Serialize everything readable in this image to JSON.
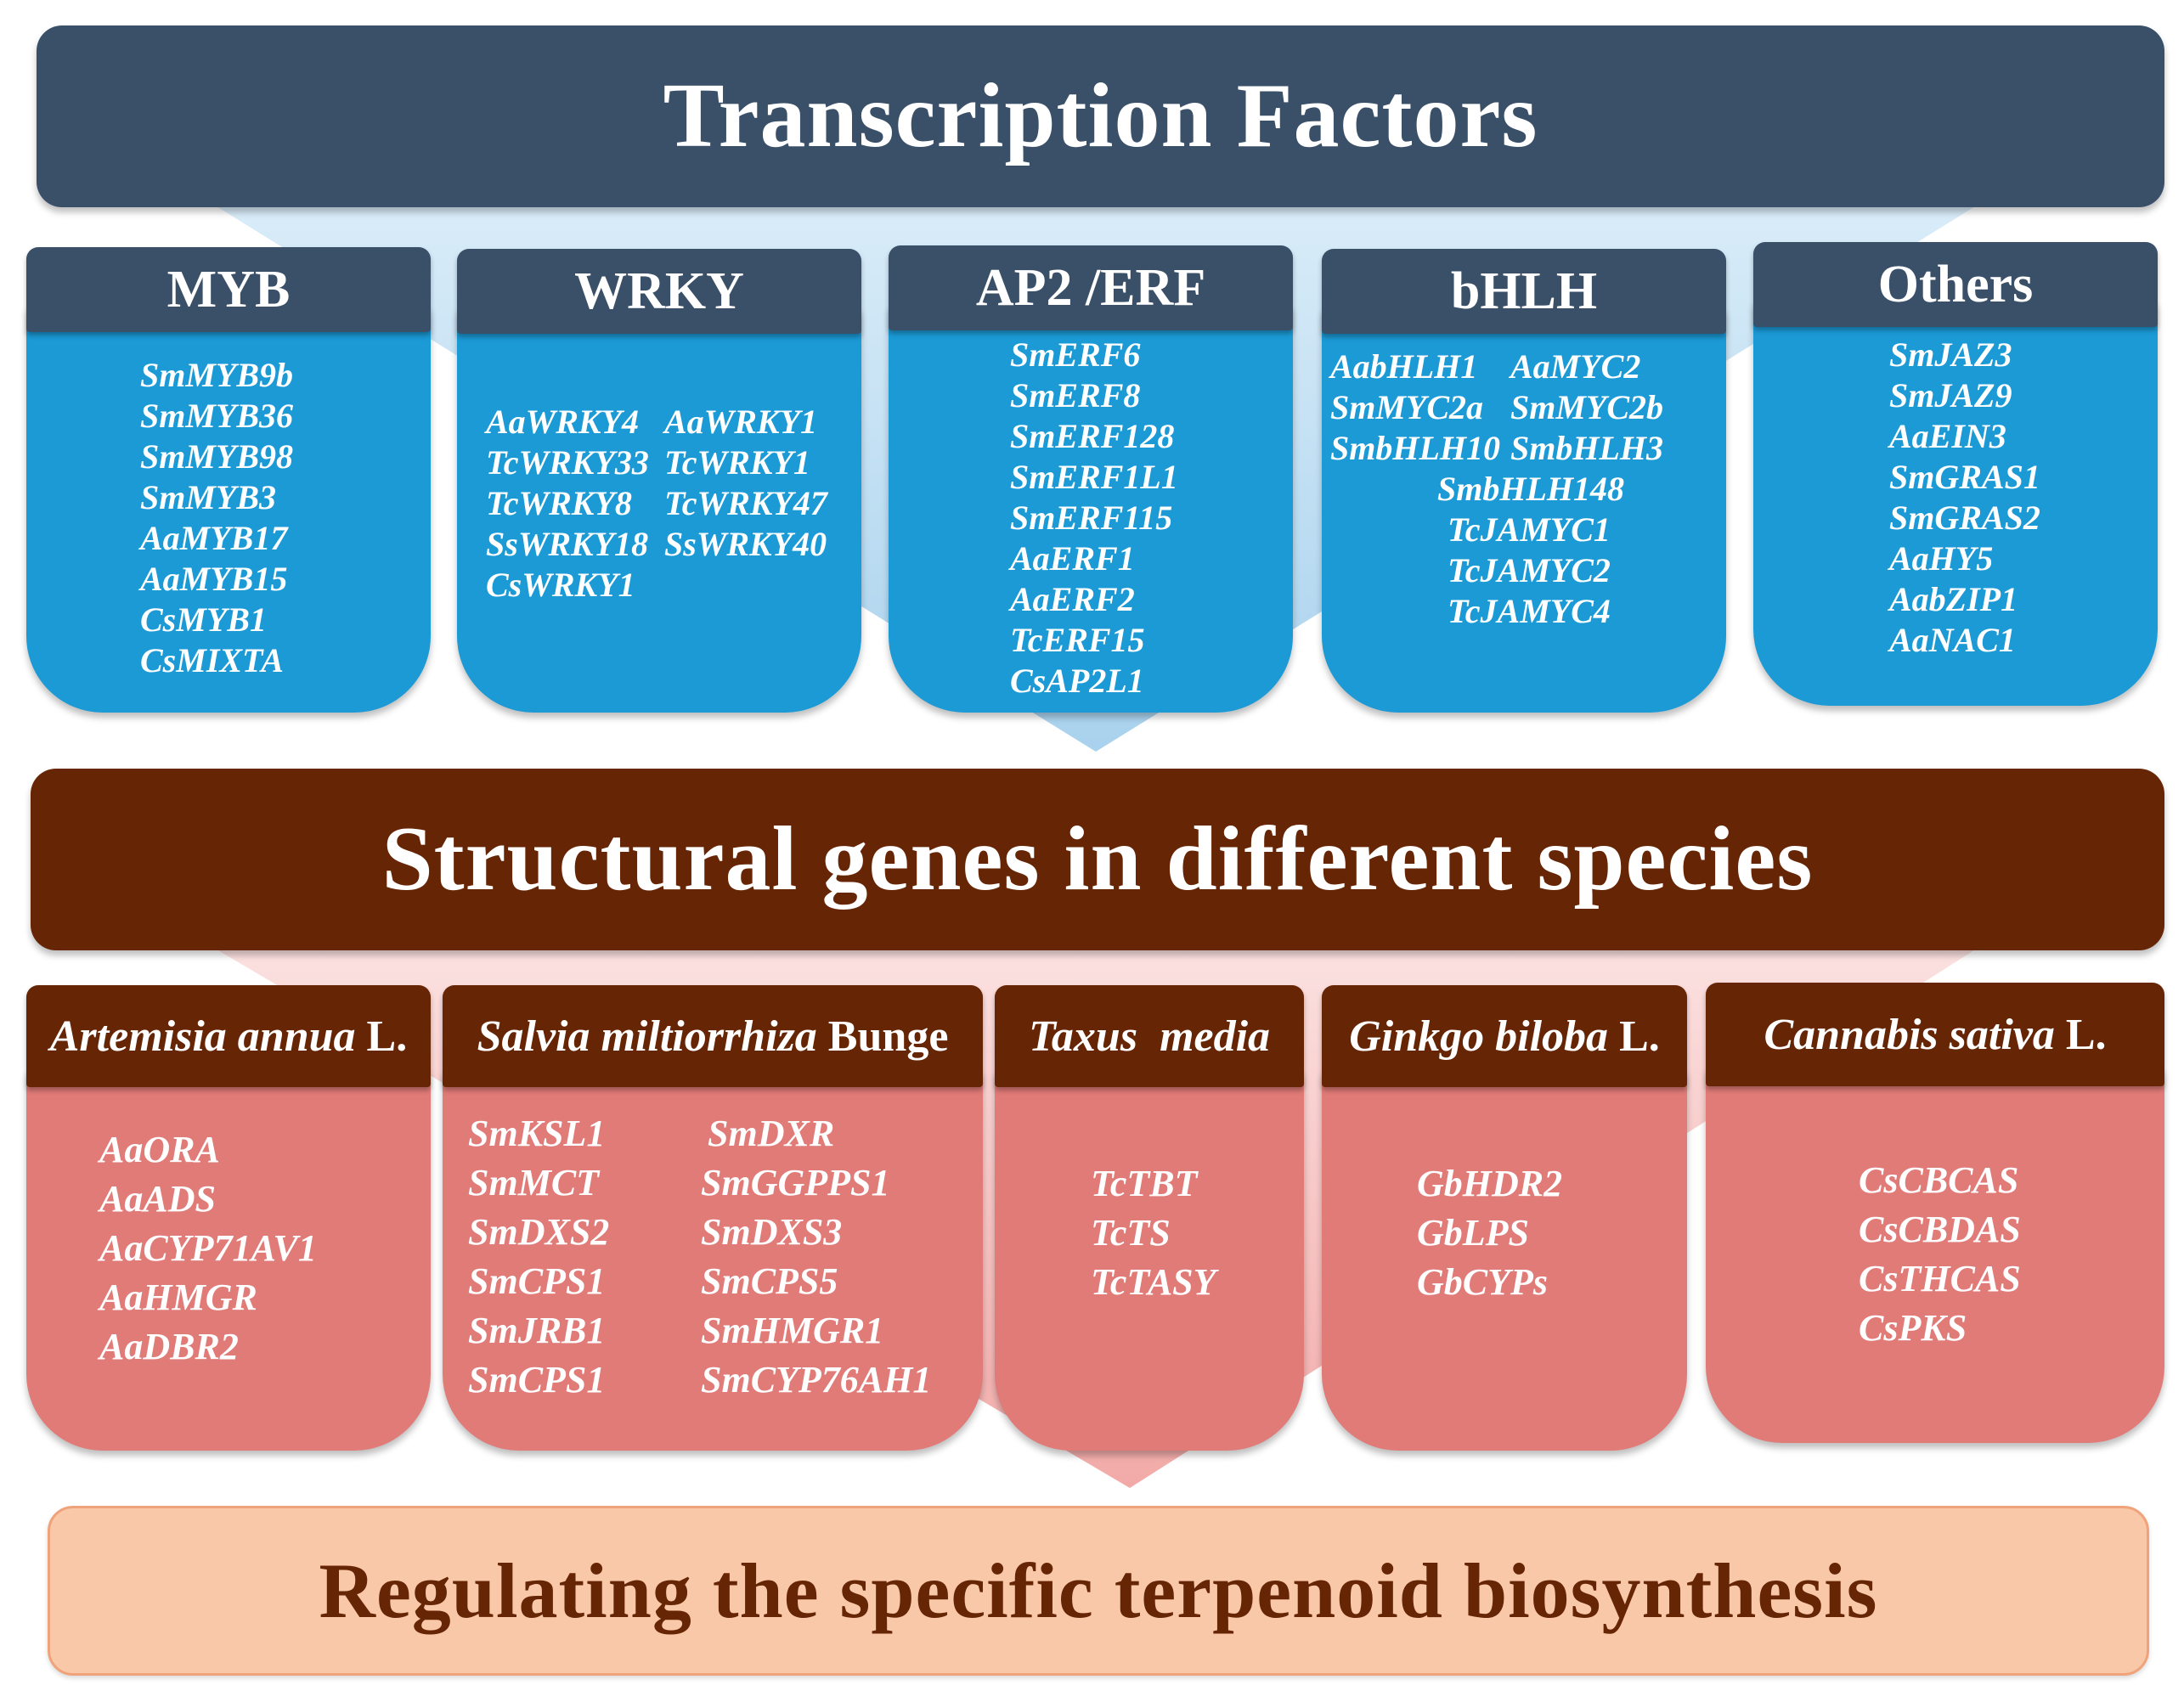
{
  "colors": {
    "tf_header": "#3a5068",
    "tf_body": "#1b9ad6",
    "sg_header": "#662505",
    "sg_body": "#e07b78",
    "reg_fill": "#f9c8a8"
  },
  "tf_band": {
    "title": "Transcription Factors"
  },
  "tf_cards": [
    {
      "title": "MYB",
      "genes": [
        "SmMYB9b",
        "SmMYB36",
        "SmMYB98",
        "SmMYB3",
        "AaMYB17",
        "AaMYB15",
        "CsMYB1",
        "CsMIXTA"
      ]
    },
    {
      "title": "WRKY",
      "genes_left": [
        "AaWRKY4",
        "TcWRKY33",
        "TcWRKY8",
        "SsWRKY18",
        "CsWRKY1"
      ],
      "genes_right": [
        "AaWRKY1",
        "TcWRKY1",
        "TcWRKY47",
        "SsWRKY40"
      ]
    },
    {
      "title": "AP2 /ERF",
      "genes": [
        "SmERF6",
        "SmERF8",
        "SmERF128",
        "SmERF1L1",
        "SmERF115",
        "AaERF1",
        "AaERF2",
        "TcERF15",
        "CsAP2L1"
      ]
    },
    {
      "title": "bHLH",
      "pairs": [
        [
          "AabHLH1",
          "AaMYC2"
        ],
        [
          "SmMYC2a",
          "SmMYC2b"
        ],
        [
          "SmbHLH10",
          "SmbHLH3"
        ]
      ],
      "genes": [
        "SmbHLH148",
        "TcJAMYC1",
        "TcJAMYC2",
        "TcJAMYC4"
      ]
    },
    {
      "title": "Others",
      "genes": [
        "SmJAZ3",
        "SmJAZ9",
        "AaEIN3",
        "SmGRAS1",
        "SmGRAS2",
        "AaHY5",
        "AabZIP1",
        "AaNAC1"
      ]
    }
  ],
  "sg_band": {
    "title": "Structural genes in different species"
  },
  "sg_cards": [
    {
      "species": "Artemisia annua",
      "authority": "L.",
      "genes": [
        "AaORA",
        "AaADS",
        "AaCYP71AV1",
        "AaHMGR",
        "AaDBR2"
      ]
    },
    {
      "species": "Salvia miltiorrhiza",
      "authority": "Bunge",
      "genes_left": [
        "SmKSL1",
        "SmMCT",
        "SmDXS2",
        "SmCPS1",
        "SmJRB1",
        "SmCPS1"
      ],
      "genes_right": [
        "SmDXR",
        "SmGGPPS1",
        "SmDXS3",
        "SmCPS5",
        "SmHMGR1",
        "SmCYP76AH1"
      ]
    },
    {
      "species": "Taxus  media",
      "authority": "",
      "genes": [
        "TcTBT",
        "TcTS",
        "TcTASY"
      ]
    },
    {
      "species": "Ginkgo biloba",
      "authority": "L.",
      "genes": [
        "GbHDR2",
        "GbLPS",
        "GbCYPs"
      ]
    },
    {
      "species": "Cannabis sativa",
      "authority": "L.",
      "genes": [
        "CsCBCAS",
        "CsCBDAS",
        "CsTHCAS",
        "CsPKS"
      ]
    }
  ],
  "reg_band": {
    "title": "Regulating the specific terpenoid biosynthesis"
  }
}
